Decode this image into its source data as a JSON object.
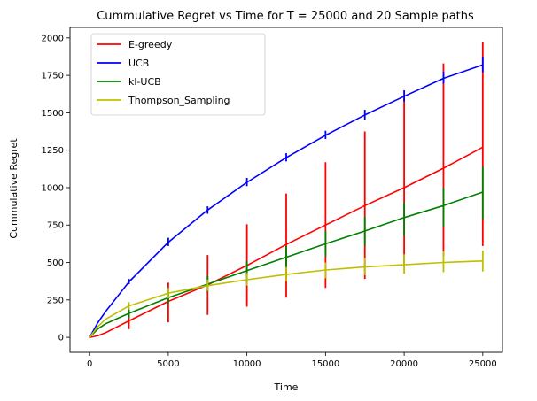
{
  "chart_data": {
    "type": "line",
    "title": "Cummulative Regret vs Time for T = 25000 and 20 Sample paths",
    "xlabel": "Time",
    "ylabel": "Cummulative Regret",
    "xlim": [
      -1250,
      26250
    ],
    "ylim": [
      -100,
      2070
    ],
    "xticks": [
      0,
      5000,
      10000,
      15000,
      20000,
      25000
    ],
    "yticks": [
      0,
      250,
      500,
      750,
      1000,
      1250,
      1500,
      1750,
      2000
    ],
    "grid": false,
    "legend_placement": "top-left",
    "series": [
      {
        "name": "E-greedy",
        "color": "#ff0000",
        "x": [
          0,
          500,
          1000,
          2500,
          5000,
          7500,
          10000,
          12500,
          15000,
          17500,
          20000,
          22500,
          25000
        ],
        "y": [
          0,
          10,
          30,
          110,
          240,
          350,
          480,
          620,
          750,
          880,
          1000,
          1130,
          1270
        ],
        "error_x": [
          2500,
          5000,
          7500,
          10000,
          12500,
          15000,
          17500,
          20000,
          22500,
          25000
        ],
        "error_low": [
          55,
          100,
          150,
          205,
          265,
          330,
          390,
          470,
          540,
          610
        ],
        "error_high": [
          170,
          365,
          550,
          755,
          960,
          1170,
          1375,
          1600,
          1830,
          1970
        ]
      },
      {
        "name": "UCB",
        "color": "#0000ff",
        "x": [
          0,
          500,
          1000,
          2500,
          5000,
          7500,
          10000,
          12500,
          15000,
          17500,
          20000,
          22500,
          25000
        ],
        "y": [
          0,
          95,
          170,
          370,
          635,
          850,
          1035,
          1200,
          1350,
          1485,
          1610,
          1730,
          1820
        ],
        "error_x": [
          2500,
          5000,
          7500,
          10000,
          12500,
          15000,
          17500,
          20000,
          22500,
          25000
        ],
        "error_low": [
          355,
          610,
          825,
          1010,
          1175,
          1325,
          1455,
          1575,
          1695,
          1770
        ],
        "error_high": [
          390,
          665,
          875,
          1065,
          1230,
          1380,
          1520,
          1650,
          1775,
          1875
        ]
      },
      {
        "name": "kl-UCB",
        "color": "#008000",
        "x": [
          0,
          500,
          1000,
          2500,
          5000,
          7500,
          10000,
          12500,
          15000,
          17500,
          20000,
          22500,
          25000
        ],
        "y": [
          0,
          55,
          90,
          160,
          265,
          355,
          445,
          535,
          625,
          710,
          800,
          880,
          970
        ],
        "error_x": [
          2500,
          5000,
          7500,
          10000,
          12500,
          15000,
          17500,
          20000,
          22500,
          25000
        ],
        "error_low": [
          130,
          225,
          305,
          385,
          460,
          540,
          610,
          680,
          740,
          790
        ],
        "error_high": [
          190,
          305,
          410,
          510,
          610,
          710,
          805,
          900,
          1000,
          1140
        ]
      },
      {
        "name": "Thompson_Sampling",
        "color": "#bfbf00",
        "x": [
          0,
          500,
          1000,
          2500,
          5000,
          7500,
          10000,
          12500,
          15000,
          17500,
          20000,
          22500,
          25000
        ],
        "y": [
          0,
          70,
          120,
          210,
          295,
          345,
          385,
          420,
          450,
          470,
          485,
          500,
          510
        ],
        "error_x": [
          2500,
          5000,
          7500,
          10000,
          12500,
          15000,
          17500,
          20000,
          22500,
          25000
        ],
        "error_low": [
          185,
          260,
          310,
          345,
          375,
          395,
          415,
          425,
          435,
          440
        ],
        "error_high": [
          235,
          330,
          385,
          430,
          470,
          500,
          530,
          555,
          575,
          580
        ]
      }
    ]
  }
}
